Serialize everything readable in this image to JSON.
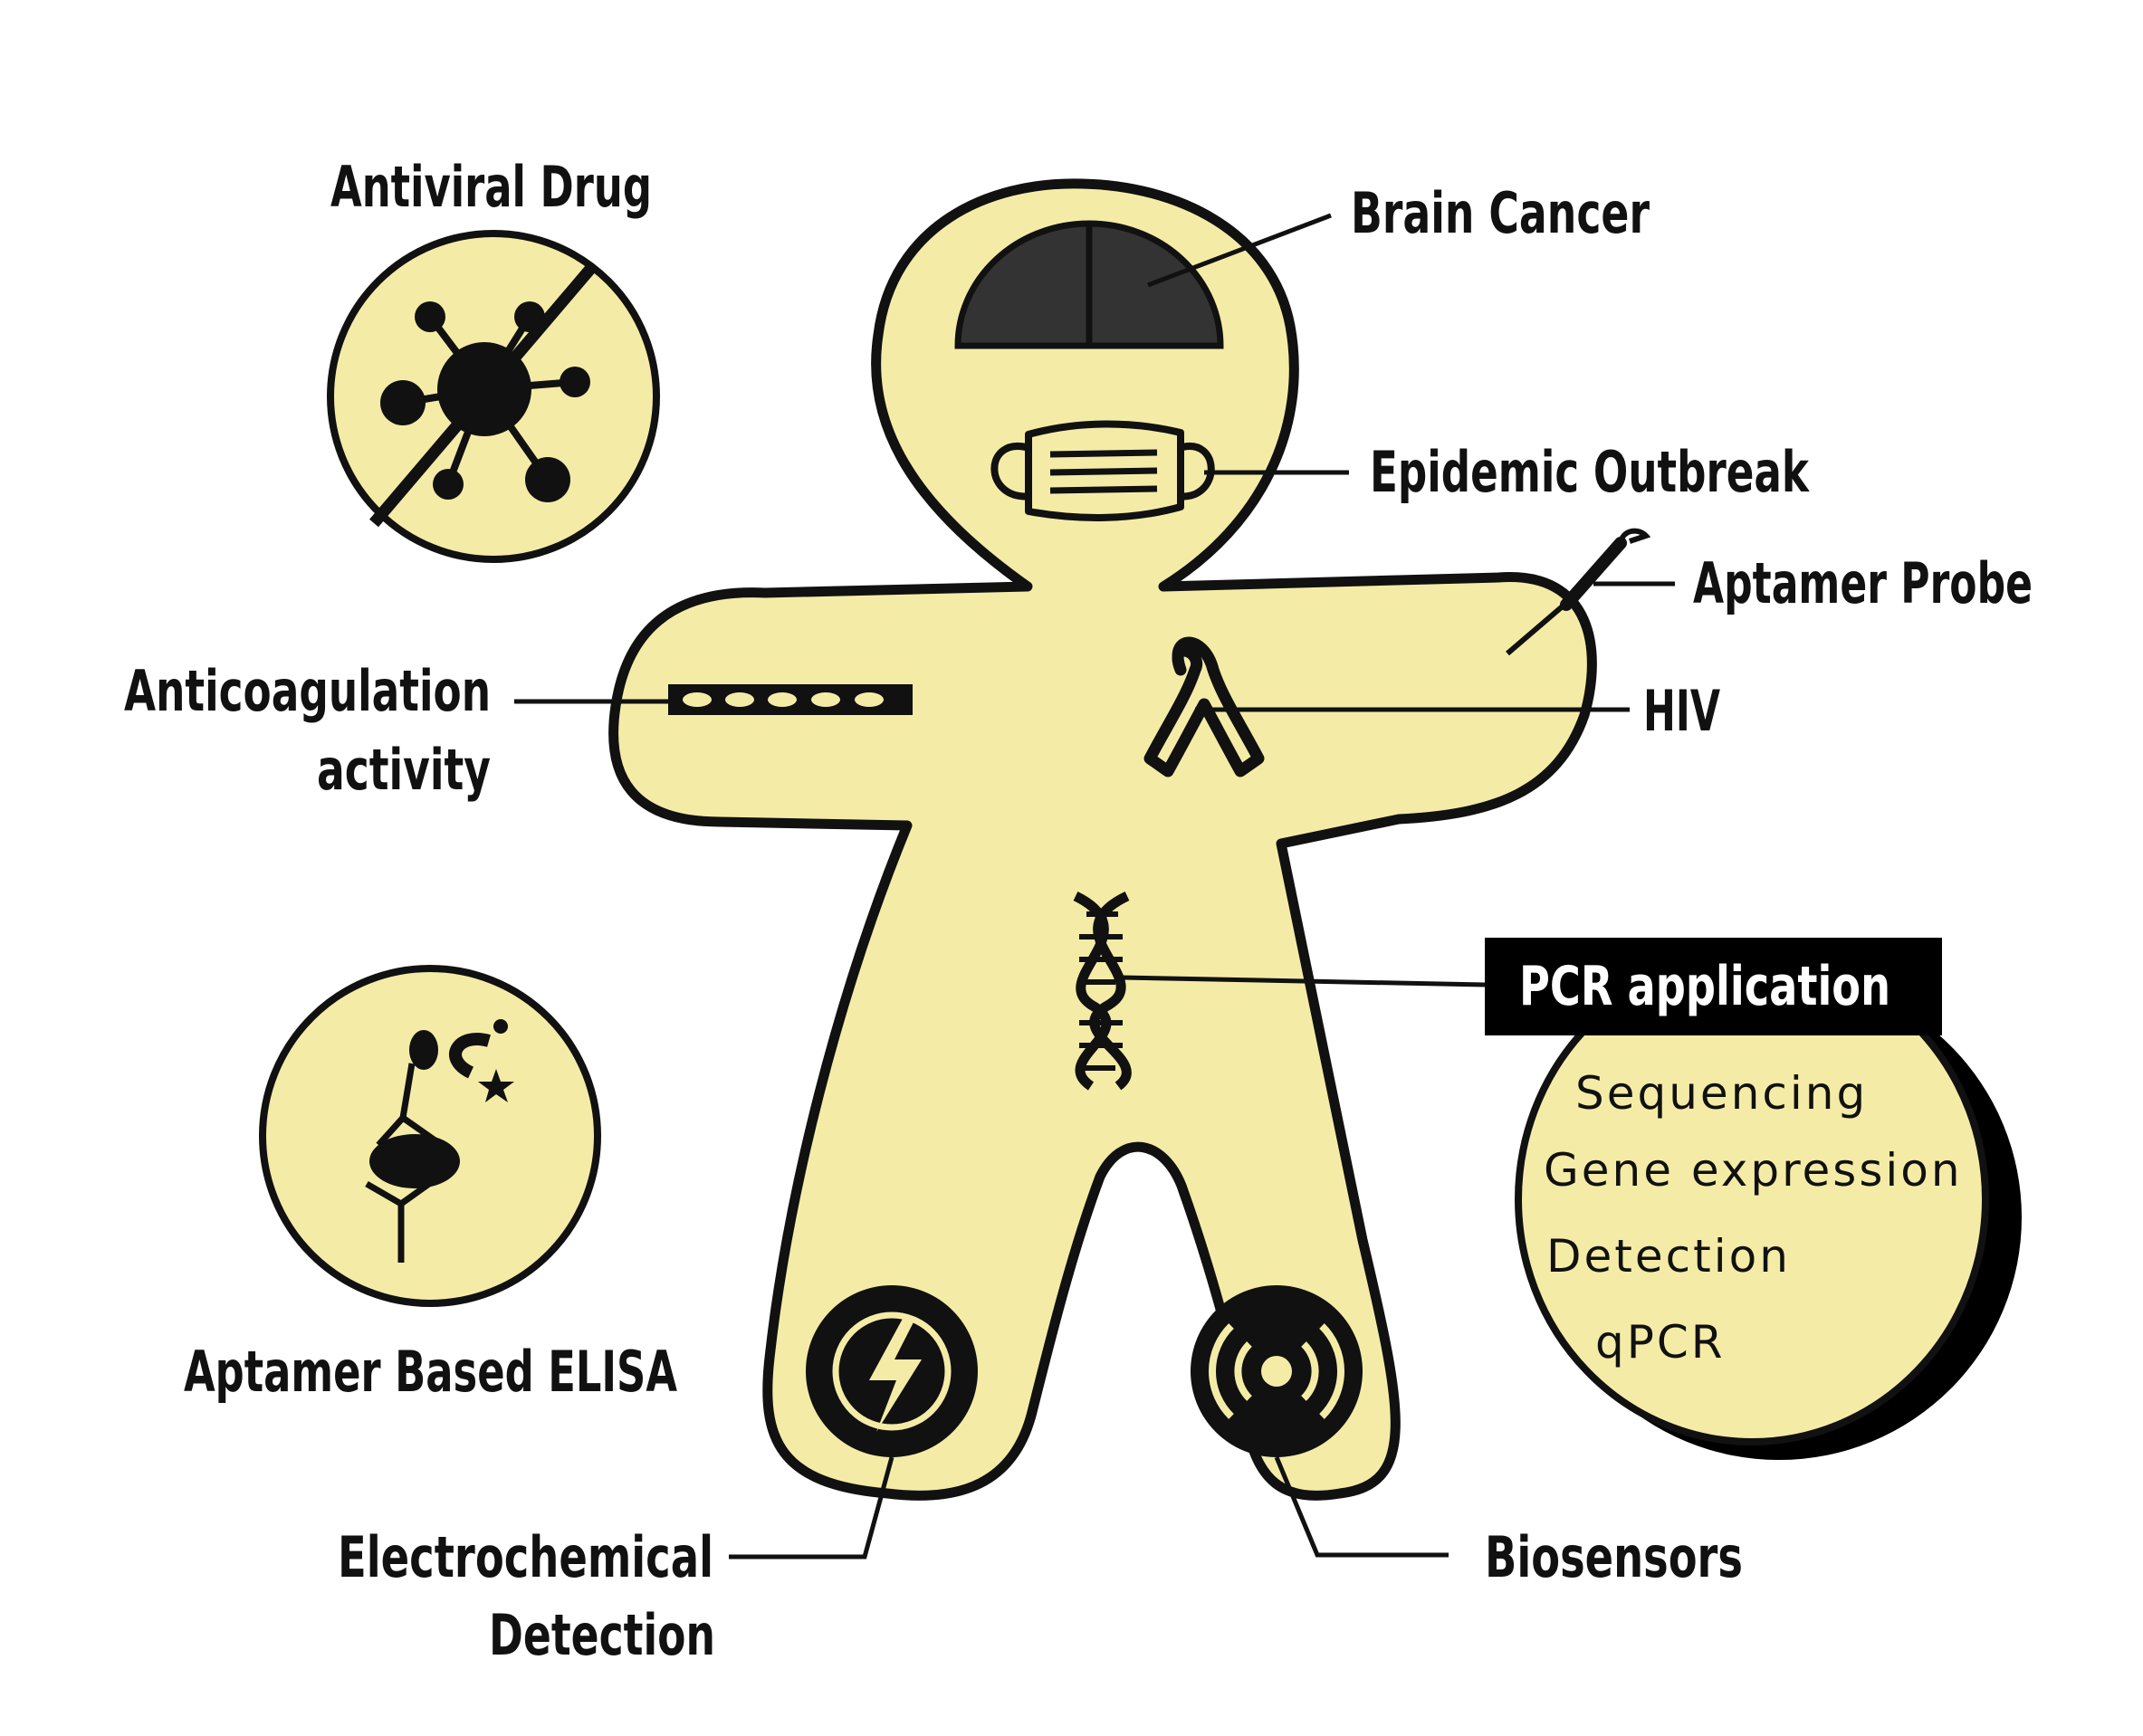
{
  "colors": {
    "fill": "#f4eca6",
    "outline": "#111111",
    "dark": "#333333",
    "label_bg": "#000000"
  },
  "labels": {
    "antiviral_drug": "Antiviral Drug",
    "brain_cancer": "Brain Cancer",
    "epidemic_outbreak": "Epidemic Outbreak",
    "aptamer_probe": "Aptamer Probe",
    "anticoagulation_line1": "Anticoagulation",
    "anticoagulation_line2": "activity",
    "hiv": "HIV",
    "pcr_application": "PCR application",
    "aptamer_elisa": "Aptamer Based ELISA",
    "electrochemical_line1": "Electrochemical",
    "electrochemical_line2": "Detection",
    "biosensors": "Biosensors"
  },
  "pcr_items": [
    "Sequencing",
    "Gene expression",
    "Detection",
    "qPCR"
  ],
  "icons": {
    "virus": "virus-crossed-icon",
    "brain": "brain-icon",
    "mask": "face-mask-icon",
    "probe": "probe-needle-icon",
    "anticoag": "anticoagulant-strip-icon",
    "ribbon": "awareness-ribbon-icon",
    "dna": "dna-helix-icon",
    "elisa": "elisa-assay-icon",
    "electro": "lightning-bolt-icon",
    "biosensor": "signal-waves-icon"
  }
}
